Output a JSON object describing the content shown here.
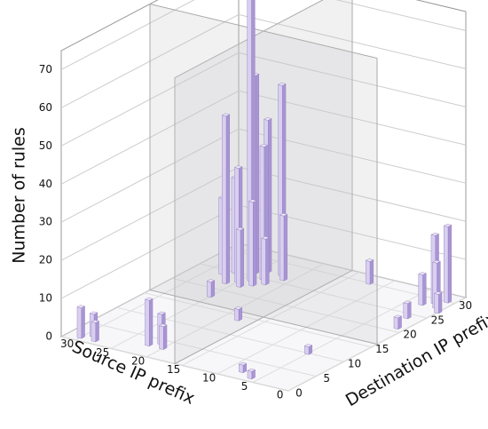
{
  "chart_data": {
    "type": "bar3d",
    "zlabel": "Number of rules",
    "xlabel": "Source IP prefix",
    "ylabel": "Destination IP prefix",
    "color": "#a995d4",
    "x": [
      24,
      25,
      23,
      22,
      26,
      24,
      25,
      27,
      23,
      28,
      24,
      26,
      22,
      27,
      21,
      30,
      29,
      28,
      22,
      21,
      20,
      1,
      2,
      1,
      3,
      0,
      2,
      1,
      8,
      6,
      12,
      18,
      25,
      5
    ],
    "y": [
      24,
      26,
      25,
      27,
      22,
      27,
      23,
      25,
      23,
      24,
      22,
      27,
      24,
      28,
      26,
      1,
      2,
      1,
      3,
      4,
      3,
      30,
      29,
      28,
      28,
      27,
      24,
      21,
      2,
      1,
      30,
      14,
      18,
      10
    ],
    "values": [
      76,
      52,
      35,
      50,
      44,
      40,
      30,
      25,
      22,
      20,
      15,
      18,
      12,
      10,
      17,
      8,
      6,
      5,
      12,
      8,
      6,
      20,
      18,
      12,
      8,
      5,
      4,
      3,
      2,
      2,
      6,
      3,
      4,
      2
    ],
    "xlim": [
      0,
      32
    ],
    "ylim": [
      0,
      32
    ],
    "zlim": [
      0,
      75
    ],
    "xticks": [
      0,
      5,
      10,
      15,
      20,
      25,
      30
    ],
    "yticks": [
      0,
      5,
      10,
      15,
      20,
      25,
      30
    ],
    "zticks": [
      0,
      10,
      20,
      30,
      40,
      50,
      60,
      70
    ]
  }
}
